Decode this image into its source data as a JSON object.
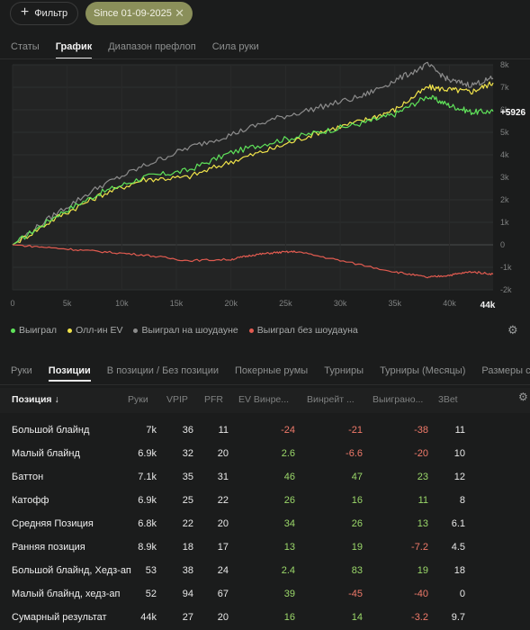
{
  "topbar": {
    "filter_label": "Фильтр",
    "date_chip": "Since 01-09-2025"
  },
  "tabs_top": [
    {
      "label": "Статы",
      "active": false
    },
    {
      "label": "График",
      "active": true
    },
    {
      "label": "Диапазон префлоп",
      "active": false
    },
    {
      "label": "Сила руки",
      "active": false
    }
  ],
  "chart_data": {
    "type": "line",
    "x_ticks": [
      "0",
      "5k",
      "10k",
      "15k",
      "20k",
      "25k",
      "30k",
      "35k",
      "40k"
    ],
    "x_end_label": "44k",
    "y_ticks": [
      "8k",
      "7k",
      "6k",
      "5k",
      "4k",
      "3k",
      "2k",
      "1k",
      "0",
      "-1k",
      "-2k"
    ],
    "ylim": [
      -2000,
      8000
    ],
    "xlim": [
      0,
      44000
    ],
    "end_value_label": "+5926",
    "colors": {
      "won": "#5fe35a",
      "allin_ev": "#f0e34a",
      "showdown": "#8c8c8c",
      "non_showdown": "#e25b50"
    },
    "series": [
      {
        "name": "Выиграл",
        "color": "#5fe35a",
        "x": [
          0,
          4000,
          8000,
          12000,
          16000,
          20000,
          24000,
          28000,
          32000,
          35000,
          38000,
          40000,
          42000,
          44000
        ],
        "y": [
          0,
          1300,
          2300,
          3000,
          3300,
          4100,
          4600,
          5000,
          5400,
          5800,
          6600,
          6200,
          5900,
          5926
        ]
      },
      {
        "name": "Олл-ин EV",
        "color": "#f0e34a",
        "x": [
          0,
          4000,
          8000,
          12000,
          16000,
          20000,
          24000,
          28000,
          32000,
          35000,
          38000,
          40000,
          42000,
          44000
        ],
        "y": [
          0,
          1200,
          2200,
          2900,
          3000,
          3700,
          4300,
          5000,
          5500,
          6000,
          7000,
          6900,
          6800,
          7200
        ]
      },
      {
        "name": "Выиграл на шоудауне",
        "color": "#8c8c8c",
        "x": [
          0,
          4000,
          8000,
          12000,
          16000,
          20000,
          24000,
          28000,
          32000,
          35000,
          38000,
          40000,
          42000,
          44000
        ],
        "y": [
          0,
          1400,
          2600,
          3500,
          4300,
          4900,
          5600,
          6100,
          6600,
          7300,
          8000,
          7300,
          7100,
          7400
        ]
      },
      {
        "name": "Выиграл без шоудауна",
        "color": "#e25b50",
        "x": [
          0,
          4000,
          8000,
          12000,
          16000,
          20000,
          22000,
          24000,
          26000,
          30000,
          35000,
          38000,
          40000,
          42000,
          44000
        ],
        "y": [
          0,
          -150,
          -300,
          -450,
          -700,
          -650,
          -450,
          -350,
          -300,
          -700,
          -1200,
          -1450,
          -1350,
          -1200,
          -1300
        ]
      }
    ]
  },
  "legend": [
    {
      "label": "Выиграл",
      "color": "#5fe35a"
    },
    {
      "label": "Олл-ин EV",
      "color": "#f0e34a"
    },
    {
      "label": "Выиграл на шоудауне",
      "color": "#8c8c8c"
    },
    {
      "label": "Выиграл без шоудауна",
      "color": "#e25b50"
    }
  ],
  "tabs_bottom": [
    {
      "label": "Руки",
      "active": false
    },
    {
      "label": "Позиции",
      "active": true
    },
    {
      "label": "В позиции / Без позиции",
      "active": false
    },
    {
      "label": "Покерные румы",
      "active": false
    },
    {
      "label": "Турниры",
      "active": false
    },
    {
      "label": "Турниры (Месяцы)",
      "active": false
    },
    {
      "label": "Размеры стека",
      "active": false
    }
  ],
  "table": {
    "headers": [
      "Позиция ↓",
      "Руки",
      "VPIP",
      "PFR",
      "EV Винре...",
      "Винрейт ...",
      "Выиграно...",
      "3Bet"
    ],
    "rows": [
      [
        "Большой блайнд",
        "7k",
        "36",
        "11",
        "-24",
        "-21",
        "-38",
        "11"
      ],
      [
        "Малый блайнд",
        "6.9k",
        "32",
        "20",
        "2.6",
        "-6.6",
        "-20",
        "10"
      ],
      [
        "Баттон",
        "7.1k",
        "35",
        "31",
        "46",
        "47",
        "23",
        "12"
      ],
      [
        "Катофф",
        "6.9k",
        "25",
        "22",
        "26",
        "16",
        "11",
        "8"
      ],
      [
        "Средняя Позиция",
        "6.8k",
        "22",
        "20",
        "34",
        "26",
        "13",
        "6.1"
      ],
      [
        "Ранняя позиция",
        "8.9k",
        "18",
        "17",
        "13",
        "19",
        "-7.2",
        "4.5"
      ],
      [
        "Большой блайнд, Хедз-ап",
        "53",
        "38",
        "24",
        "2.4",
        "83",
        "19",
        "18"
      ],
      [
        "Малый блайнд, хедз-ап",
        "52",
        "94",
        "67",
        "39",
        "-45",
        "-40",
        "0"
      ],
      [
        "Сумарный результат",
        "44k",
        "27",
        "20",
        "16",
        "14",
        "-3.2",
        "9.7"
      ]
    ]
  }
}
